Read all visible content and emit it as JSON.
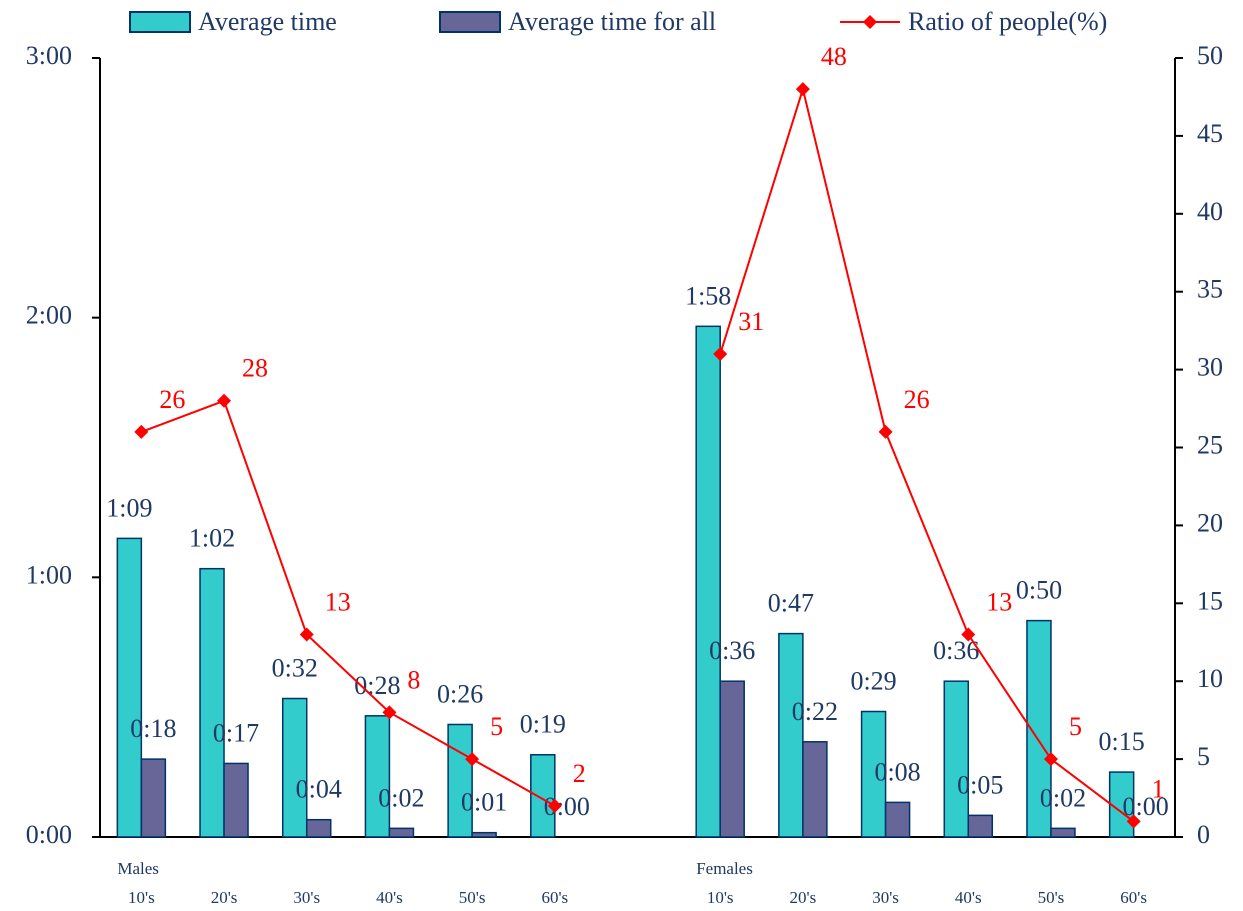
{
  "chart_data": {
    "type": "bar_line",
    "group_labels": [
      "Males",
      "Females"
    ],
    "categories": [
      "10's",
      "20's",
      "30's",
      "40's",
      "50's",
      "60's",
      null,
      "10's",
      "20's",
      "30's",
      "40's",
      "50's",
      "60's"
    ],
    "series": [
      {
        "name": "Average time",
        "color": "#33cccc",
        "type": "bar",
        "values": [
          69,
          62,
          32,
          28,
          26,
          19,
          null,
          118,
          47,
          29,
          36,
          50,
          15
        ],
        "value_labels": [
          "1:09",
          "1:02",
          "0:32",
          "0:28",
          "0:26",
          "0:19",
          null,
          "1:58",
          "0:47",
          "0:29",
          "0:36",
          "0:50",
          "0:15"
        ]
      },
      {
        "name": "Average time for all",
        "color": "#666699",
        "type": "bar",
        "values": [
          18,
          17,
          4,
          2,
          1,
          0,
          null,
          36,
          22,
          8,
          5,
          2,
          0
        ],
        "value_labels": [
          "0:18",
          "0:17",
          "0:04",
          "0:02",
          "0:01",
          "0:00",
          null,
          "0:36",
          "0:22",
          "0:08",
          "0:05",
          "0:02",
          "0:00"
        ]
      },
      {
        "name": "Ratio of people(%)",
        "color": "#ff0000",
        "type": "line",
        "axis": "y2",
        "values": [
          26,
          28,
          13,
          8,
          5,
          2,
          null,
          31,
          48,
          26,
          13,
          5,
          1
        ]
      }
    ],
    "ylim": [
      0,
      180
    ],
    "yticks": [
      {
        "value": 0,
        "label": "0:00"
      },
      {
        "value": 60,
        "label": "1:00"
      },
      {
        "value": 120,
        "label": "2:00"
      },
      {
        "value": 180,
        "label": "3:00"
      }
    ],
    "y2lim": [
      0,
      50
    ],
    "y2ticks": [
      0,
      5,
      10,
      15,
      20,
      25,
      30,
      35,
      40,
      45,
      50
    ],
    "legend": "top"
  }
}
